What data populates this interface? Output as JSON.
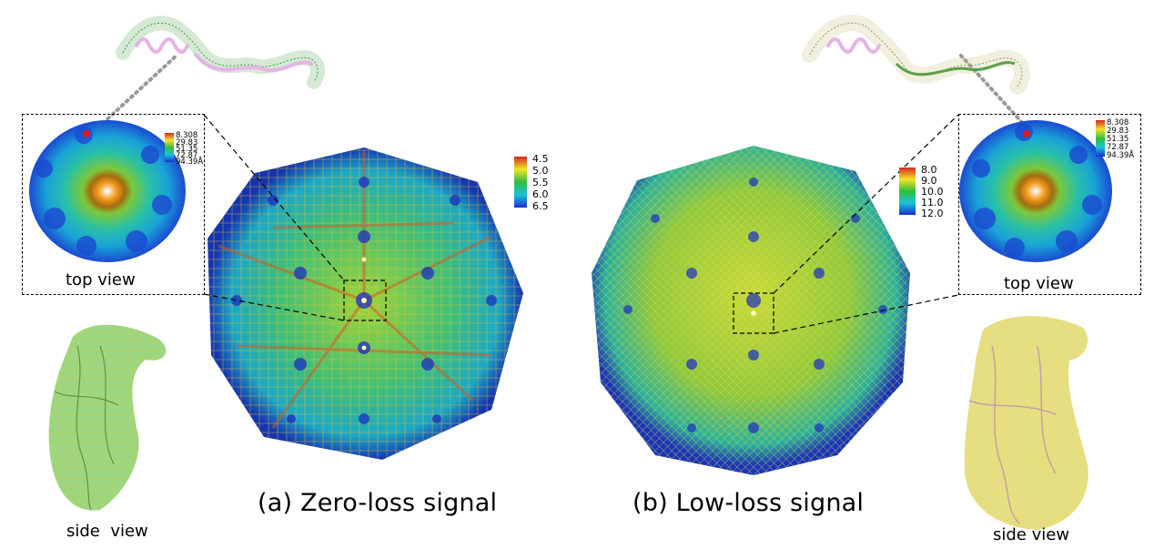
{
  "panel_a": {
    "caption": "(a) Zero-loss signal",
    "inset_label": "top view",
    "side_label": "side  view",
    "big_scale": [
      "4.5",
      "5.0",
      "5.5",
      "6.0",
      "6.5"
    ],
    "inset_scale": [
      "8.308",
      "29.83",
      "51.35",
      "72.87",
      "94.39Å"
    ],
    "mesh_color": "#3e9a3e",
    "side_color": "#8ccf6a"
  },
  "panel_b": {
    "caption": "(b) Low-loss signal",
    "inset_label": "top view",
    "side_label": "side view",
    "big_scale": [
      "8.0",
      "9.0",
      "10.0",
      "11.0",
      "12.0"
    ],
    "inset_scale": [
      "8.308",
      "29.83",
      "51.35",
      "72.87",
      "94.39Å"
    ],
    "mesh_color": "#c9c07a",
    "side_color": "#e2d86f"
  },
  "colors": {
    "scale_top": "#d7261e",
    "scale_mid": "#f2e52a",
    "scale_green": "#2fbf3c",
    "scale_cyan": "#1cc2d8",
    "scale_bottom": "#1a2fd0",
    "helix": "#e6b3e6"
  }
}
